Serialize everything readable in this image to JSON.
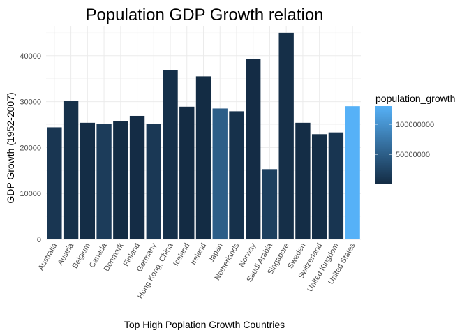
{
  "chart_data": {
    "type": "bar",
    "title": "Population GDP Growth relation",
    "xlabel": "Top High Poplation Growth Countries",
    "ylabel": "GDP Growth (1952-2007)",
    "ylim": [
      0,
      46500
    ],
    "yticks": [
      0,
      10000,
      20000,
      30000,
      40000
    ],
    "ytick_labels": [
      "0",
      "10000",
      "20000",
      "30000",
      "40000"
    ],
    "grid": true,
    "legend_position": "right",
    "categories": [
      "Australia",
      "Austria",
      "Belgium",
      "Canada",
      "Denmark",
      "Finland",
      "Germany",
      "Hong Kong, China",
      "Iceland",
      "Ireland",
      "Japan",
      "Netherlands",
      "Norway",
      "Saudi Arabia",
      "Singapore",
      "Sweden",
      "Switzerland",
      "United Kingdom",
      "United States"
    ],
    "values": [
      24400,
      30100,
      25400,
      25100,
      25700,
      26900,
      25100,
      36800,
      28900,
      35500,
      28500,
      27900,
      39300,
      15300,
      45000,
      25400,
      22900,
      23300,
      29000
    ],
    "color_values": [
      11000000,
      5500000,
      2000000,
      17000000,
      1000000,
      1200000,
      13000000,
      4800000,
      150000,
      1000000,
      50000000,
      6000000,
      1300000,
      20000000,
      3500000,
      2000000,
      2800000,
      10000000,
      130000000
    ],
    "colorscale": {
      "name": "population_growth",
      "min": 100000,
      "max": 130000000,
      "low_color": "#132B43",
      "high_color": "#56B1F7",
      "ticks": [
        50000000,
        100000000
      ],
      "tick_labels": [
        "50000000",
        "100000000"
      ]
    }
  }
}
